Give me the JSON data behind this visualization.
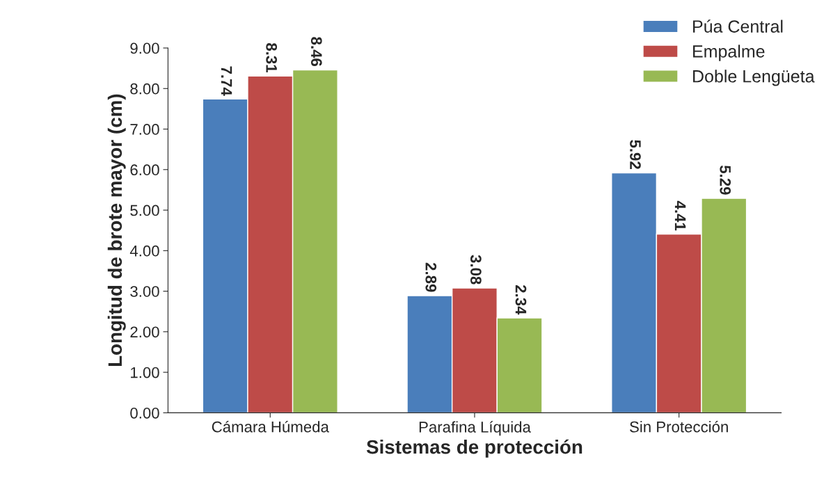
{
  "chart_data": {
    "type": "bar",
    "xlabel": "Sistemas de protección",
    "ylabel": "Longitud de brote mayor (cm)",
    "categories": [
      "Cámara Húmeda",
      "Parafina Líquida",
      "Sin Protección"
    ],
    "series": [
      {
        "name": "Púa Central",
        "color": "#4a7ebb",
        "values": [
          7.74,
          2.89,
          5.92
        ]
      },
      {
        "name": "Empalme",
        "color": "#be4b48",
        "values": [
          8.31,
          3.08,
          4.41
        ]
      },
      {
        "name": "Doble Lengüeta",
        "color": "#98b954",
        "values": [
          8.46,
          2.34,
          5.29
        ]
      }
    ],
    "ylim": [
      0,
      9
    ],
    "yticks": [
      {
        "value": 0,
        "label": "0.00"
      },
      {
        "value": 1,
        "label": "1.00"
      },
      {
        "value": 2,
        "label": "2.00"
      },
      {
        "value": 3,
        "label": "3.00"
      },
      {
        "value": 4,
        "label": "4.00"
      },
      {
        "value": 5,
        "label": "5.00"
      },
      {
        "value": 6,
        "label": "6.00"
      },
      {
        "value": 7,
        "label": "7.00"
      },
      {
        "value": 8,
        "label": "8.00"
      },
      {
        "value": 9,
        "label": "9.00"
      }
    ],
    "data_labels": true,
    "grid": false,
    "legend": "top right"
  }
}
